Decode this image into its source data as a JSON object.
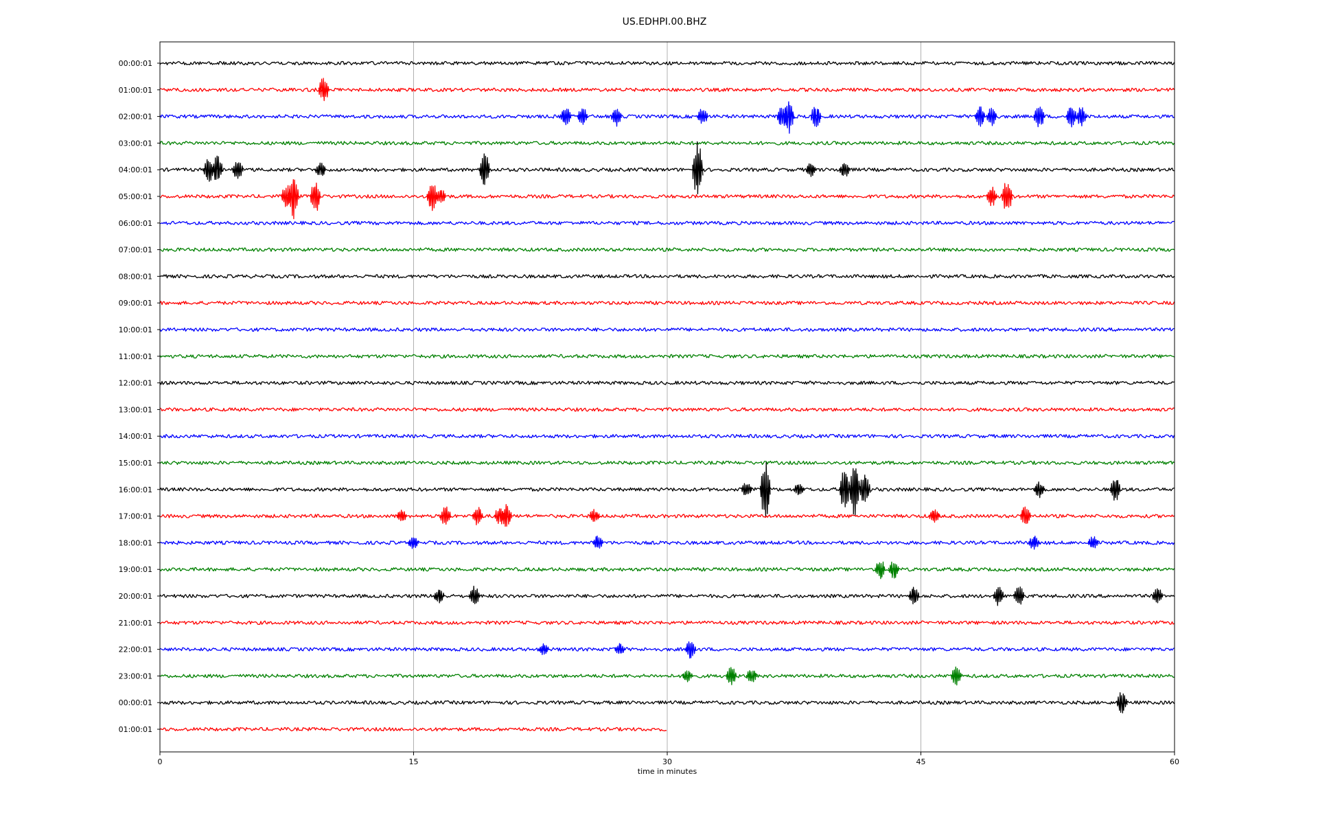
{
  "chart_data": {
    "type": "line",
    "title": "US.EDHPI.00.BHZ",
    "xlabel": "time in minutes",
    "ylabel": "",
    "xlim": [
      0,
      60
    ],
    "x_ticks": [
      "0",
      "15",
      "30",
      "45",
      "60"
    ],
    "grid": "vertical lines at 15, 30, 45 minutes",
    "series_colors": [
      "#000000",
      "#ff0000",
      "#0000ff",
      "#008000"
    ],
    "row_labels": [
      "00:00:01",
      "01:00:01",
      "02:00:01",
      "03:00:01",
      "04:00:01",
      "05:00:01",
      "06:00:01",
      "07:00:01",
      "08:00:01",
      "09:00:01",
      "10:00:01",
      "11:00:01",
      "12:00:01",
      "13:00:01",
      "14:00:01",
      "15:00:01",
      "16:00:01",
      "17:00:01",
      "18:00:01",
      "19:00:01",
      "20:00:01",
      "21:00:01",
      "22:00:01",
      "23:00:01",
      "00:00:01",
      "01:00:01"
    ],
    "rows": [
      {
        "label": "00:00:01",
        "end_minute": 60,
        "events": []
      },
      {
        "label": "01:00:01",
        "end_minute": 60,
        "events": [
          {
            "minute": 9.7,
            "amplitude": 0.6
          }
        ]
      },
      {
        "label": "02:00:01",
        "end_minute": 60,
        "events": [
          {
            "minute": 24,
            "amplitude": 0.5
          },
          {
            "minute": 25,
            "amplitude": 0.45
          },
          {
            "minute": 27,
            "amplitude": 0.5
          },
          {
            "minute": 32.1,
            "amplitude": 0.4
          },
          {
            "minute": 36.8,
            "amplitude": 0.6
          },
          {
            "minute": 37.2,
            "amplitude": 0.9
          },
          {
            "minute": 38.8,
            "amplitude": 0.6
          },
          {
            "minute": 48.5,
            "amplitude": 0.5
          },
          {
            "minute": 49.2,
            "amplitude": 0.45
          },
          {
            "minute": 52,
            "amplitude": 0.6
          },
          {
            "minute": 53.9,
            "amplitude": 0.6
          },
          {
            "minute": 54.5,
            "amplitude": 0.5
          }
        ]
      },
      {
        "label": "03:00:01",
        "end_minute": 60,
        "events": []
      },
      {
        "label": "04:00:01",
        "end_minute": 60,
        "events": [
          {
            "minute": 2.9,
            "amplitude": 0.6
          },
          {
            "minute": 3.4,
            "amplitude": 0.7
          },
          {
            "minute": 4.6,
            "amplitude": 0.5
          },
          {
            "minute": 9.5,
            "amplitude": 0.4
          },
          {
            "minute": 19.2,
            "amplitude": 0.8
          },
          {
            "minute": 31.8,
            "amplitude": 1.4
          },
          {
            "minute": 38.5,
            "amplitude": 0.35
          },
          {
            "minute": 40.5,
            "amplitude": 0.4
          }
        ]
      },
      {
        "label": "05:00:01",
        "end_minute": 60,
        "events": [
          {
            "minute": 7.5,
            "amplitude": 0.6
          },
          {
            "minute": 7.9,
            "amplitude": 1.2
          },
          {
            "minute": 9.2,
            "amplitude": 0.8
          },
          {
            "minute": 16.1,
            "amplitude": 0.7
          },
          {
            "minute": 16.6,
            "amplitude": 0.4
          },
          {
            "minute": 49.2,
            "amplitude": 0.5
          },
          {
            "minute": 50.1,
            "amplitude": 0.8
          }
        ]
      },
      {
        "label": "06:00:01",
        "end_minute": 60,
        "events": []
      },
      {
        "label": "07:00:01",
        "end_minute": 60,
        "events": []
      },
      {
        "label": "08:00:01",
        "end_minute": 60,
        "events": []
      },
      {
        "label": "09:00:01",
        "end_minute": 60,
        "events": []
      },
      {
        "label": "10:00:01",
        "end_minute": 60,
        "events": []
      },
      {
        "label": "11:00:01",
        "end_minute": 60,
        "events": []
      },
      {
        "label": "12:00:01",
        "end_minute": 60,
        "events": []
      },
      {
        "label": "13:00:01",
        "end_minute": 60,
        "events": []
      },
      {
        "label": "14:00:01",
        "end_minute": 60,
        "events": []
      },
      {
        "label": "15:00:01",
        "end_minute": 60,
        "events": []
      },
      {
        "label": "16:00:01",
        "end_minute": 60,
        "events": [
          {
            "minute": 34.7,
            "amplitude": 0.35
          },
          {
            "minute": 35.8,
            "amplitude": 1.5
          },
          {
            "minute": 37.8,
            "amplitude": 0.35
          },
          {
            "minute": 40.5,
            "amplitude": 1.0
          },
          {
            "minute": 41.1,
            "amplitude": 1.3
          },
          {
            "minute": 41.7,
            "amplitude": 0.8
          },
          {
            "minute": 52,
            "amplitude": 0.4
          },
          {
            "minute": 56.5,
            "amplitude": 0.6
          }
        ]
      },
      {
        "label": "17:00:01",
        "end_minute": 60,
        "events": [
          {
            "minute": 14.3,
            "amplitude": 0.3
          },
          {
            "minute": 16.9,
            "amplitude": 0.5
          },
          {
            "minute": 18.8,
            "amplitude": 0.45
          },
          {
            "minute": 20.1,
            "amplitude": 0.45
          },
          {
            "minute": 20.5,
            "amplitude": 0.6
          },
          {
            "minute": 25.7,
            "amplitude": 0.35
          },
          {
            "minute": 45.8,
            "amplitude": 0.35
          },
          {
            "minute": 51.2,
            "amplitude": 0.5
          }
        ]
      },
      {
        "label": "18:00:01",
        "end_minute": 60,
        "events": [
          {
            "minute": 15,
            "amplitude": 0.35
          },
          {
            "minute": 25.9,
            "amplitude": 0.35
          },
          {
            "minute": 51.7,
            "amplitude": 0.35
          },
          {
            "minute": 55.2,
            "amplitude": 0.35
          }
        ]
      },
      {
        "label": "19:00:01",
        "end_minute": 60,
        "events": [
          {
            "minute": 42.6,
            "amplitude": 0.5
          },
          {
            "minute": 43.4,
            "amplitude": 0.45
          }
        ]
      },
      {
        "label": "20:00:01",
        "end_minute": 60,
        "events": [
          {
            "minute": 16.5,
            "amplitude": 0.35
          },
          {
            "minute": 18.6,
            "amplitude": 0.5
          },
          {
            "minute": 44.6,
            "amplitude": 0.45
          },
          {
            "minute": 49.6,
            "amplitude": 0.5
          },
          {
            "minute": 50.8,
            "amplitude": 0.5
          },
          {
            "minute": 59,
            "amplitude": 0.4
          }
        ]
      },
      {
        "label": "21:00:01",
        "end_minute": 60,
        "events": []
      },
      {
        "label": "22:00:01",
        "end_minute": 60,
        "events": [
          {
            "minute": 22.7,
            "amplitude": 0.3
          },
          {
            "minute": 27.2,
            "amplitude": 0.3
          },
          {
            "minute": 31.4,
            "amplitude": 0.5
          }
        ]
      },
      {
        "label": "23:00:01",
        "end_minute": 60,
        "events": [
          {
            "minute": 31.2,
            "amplitude": 0.3
          },
          {
            "minute": 33.8,
            "amplitude": 0.45
          },
          {
            "minute": 35,
            "amplitude": 0.35
          },
          {
            "minute": 47.1,
            "amplitude": 0.45
          }
        ]
      },
      {
        "label": "00:00:01",
        "end_minute": 60,
        "events": [
          {
            "minute": 56.9,
            "amplitude": 0.6
          }
        ]
      },
      {
        "label": "01:00:01",
        "end_minute": 30,
        "events": []
      }
    ]
  }
}
